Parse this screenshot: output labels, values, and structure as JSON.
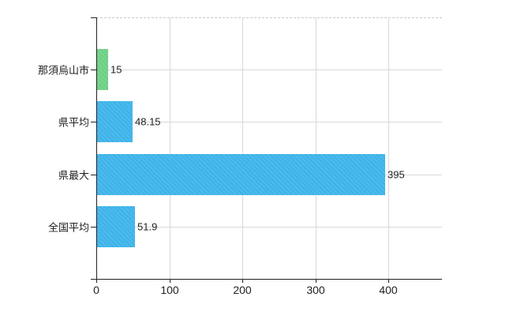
{
  "chart_data": {
    "type": "bar",
    "orientation": "horizontal",
    "title": "",
    "categories": [
      "那須烏山市",
      "県平均",
      "県最大",
      "全国平均"
    ],
    "values": [
      15,
      48.15,
      395,
      51.9
    ],
    "value_labels": [
      "15",
      "48.15",
      "395",
      "51.9"
    ],
    "bar_colors": [
      "#70d287",
      "#3fb6ec",
      "#3fb6ec",
      "#3fb6ec"
    ],
    "x_tick_labels": [
      "0",
      "100",
      "200",
      "300",
      "400"
    ],
    "x_tick_values": [
      0,
      100,
      200,
      300,
      400
    ],
    "xlim": [
      0,
      473.5
    ],
    "grid": true,
    "legend": "none"
  },
  "colors": {
    "bar_blue": "#3fb6ec",
    "bar_green": "#70d287",
    "gridline": "#d9d9d9",
    "top_border": "#c9c9c9",
    "axis": "#222222",
    "text": "#222222",
    "background": "#ffffff"
  }
}
